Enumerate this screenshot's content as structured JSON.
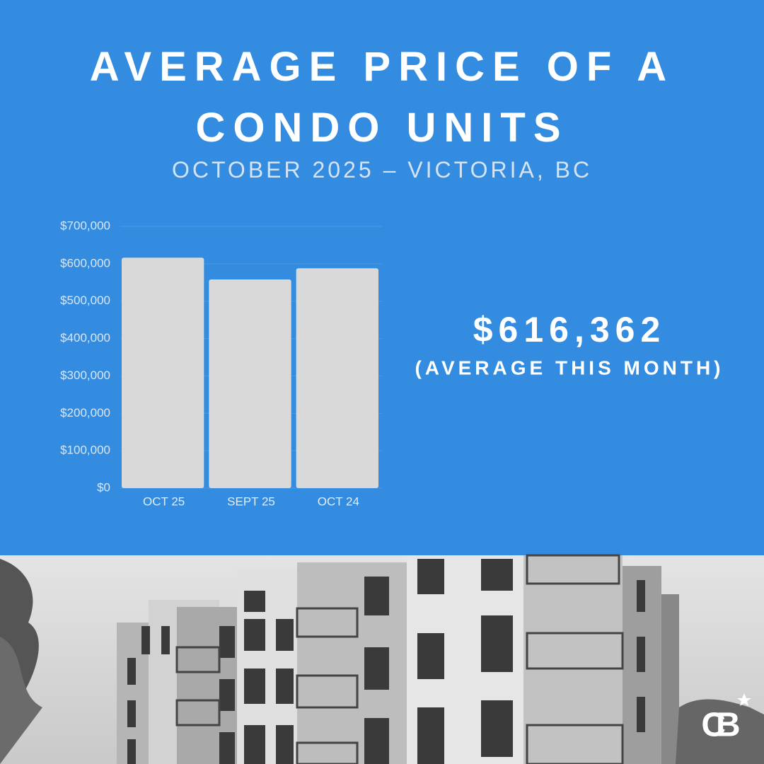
{
  "chart_data": {
    "type": "bar",
    "title": "AVERAGE PRICE OF A CONDO UNITS",
    "subtitle": "OCTOBER 2025 – VICTORIA, BC",
    "categories": [
      "OCT 25",
      "SEPT 25",
      "OCT 24"
    ],
    "values": [
      616362,
      558000,
      588000
    ],
    "color": "#d9d9d9",
    "ylim": [
      0,
      700000
    ],
    "yticks": [
      {
        "value": 0,
        "label": "$0"
      },
      {
        "value": 100000,
        "label": "$100,000"
      },
      {
        "value": 200000,
        "label": "$200,000"
      },
      {
        "value": 300000,
        "label": "$300,000"
      },
      {
        "value": 400000,
        "label": "$400,000"
      },
      {
        "value": 500000,
        "label": "$500,000"
      },
      {
        "value": 600000,
        "label": "$600,000"
      },
      {
        "value": 700000,
        "label": "$700,000"
      }
    ],
    "grid": true,
    "annotations": [
      "$616,362",
      "(AVERAGE THIS MONTH)"
    ],
    "logo": "CB"
  }
}
